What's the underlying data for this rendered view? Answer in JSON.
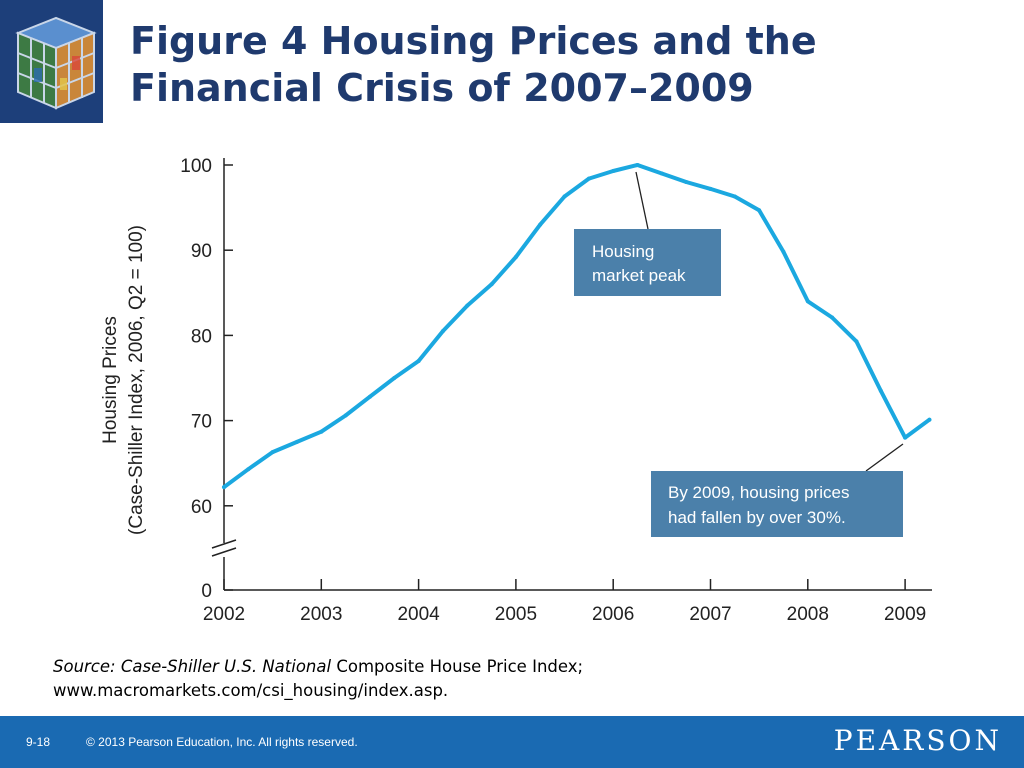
{
  "slide": {
    "title_line1": "Figure 4  Housing Prices and the",
    "title_line2": "Financial Crisis of 2007–2009",
    "source_label": "Source: Case-Shiller U.S. National",
    "source_rest": " Composite House Price Index;",
    "source_line2": "www.macromarkets.com/csi_housing/index.asp.",
    "page_number": "9-18",
    "copyright": "© 2013 Pearson Education, Inc. All rights reserved.",
    "brand": "PEARSON"
  },
  "chart_data": {
    "type": "line",
    "title": "",
    "xlabel": "",
    "ylabel_line1": "Housing Prices",
    "ylabel_line2": "(Case-Shiller Index, 2006, Q2 = 100)",
    "x_ticks": [
      "2002",
      "2003",
      "2004",
      "2005",
      "2006",
      "2007",
      "2008",
      "2009"
    ],
    "y_ticks": [
      "100",
      "90",
      "80",
      "70",
      "60",
      "0"
    ],
    "y_break": "60 to 0 axis break",
    "ylim": [
      60,
      100
    ],
    "color": "#1ba8e0",
    "series": [
      {
        "x": [
          2002.0,
          2002.25,
          2002.5,
          2002.75,
          2003.0,
          2003.25,
          2003.5,
          2003.75,
          2004.0,
          2004.25,
          2004.5,
          2004.75,
          2005.0,
          2005.25,
          2005.5,
          2005.75,
          2006.0,
          2006.25,
          2006.5,
          2006.75,
          2007.0,
          2007.25,
          2007.5,
          2007.75,
          2008.0,
          2008.25,
          2008.5,
          2008.75,
          2009.0,
          2009.25
        ],
        "values": [
          62.2,
          64.3,
          66.3,
          67.5,
          68.7,
          70.6,
          72.8,
          75.0,
          77.0,
          80.5,
          83.5,
          86.0,
          89.2,
          93.0,
          96.3,
          98.4,
          99.3,
          100.0,
          99.0,
          98.0,
          97.2,
          96.3,
          94.7,
          89.8,
          84.0,
          82.1,
          79.3,
          73.5,
          68.0,
          70.1
        ]
      }
    ],
    "annotations": [
      {
        "line1": "Housing",
        "line2": "market peak",
        "points_to": "2006 Q2 peak (100)"
      },
      {
        "line1": "By 2009, housing prices",
        "line2": "had fallen by over 30%.",
        "points_to": "2009 Q1 trough"
      }
    ],
    "callout_color": "#4b80aa"
  }
}
